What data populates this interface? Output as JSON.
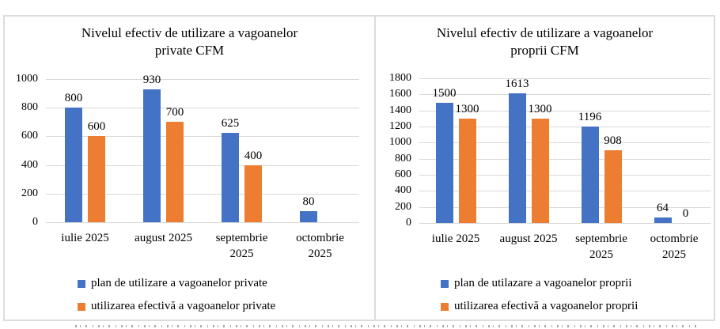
{
  "colors": {
    "plan_series": "#4472C4",
    "efectiv_series": "#ED7D31",
    "gridline": "#D9D9D9",
    "panel_border": "#DCDCDC",
    "text": "#000000"
  },
  "chart_data": [
    {
      "type": "bar",
      "title": "Nivelul efectiv de utilizare a vagoanelor private CFM",
      "title_lines": [
        "Nivelul efectiv de utilizare a vagoanelor",
        "private CFM"
      ],
      "categories": [
        "iulie 2025",
        "august 2025",
        "septembrie 2025",
        "octombrie 2025"
      ],
      "categories_display": [
        [
          "iulie 2025"
        ],
        [
          "august 2025"
        ],
        [
          "septembrie",
          "2025"
        ],
        [
          "octombrie",
          "2025"
        ]
      ],
      "series": [
        {
          "name": "plan de utilizare a vagoanelor private",
          "color": "#4472C4",
          "values": [
            800,
            930,
            625,
            80
          ],
          "data_labels": [
            "800",
            "930",
            "625",
            "80"
          ]
        },
        {
          "name": "utilizarea efectivă a vagoanelor private",
          "color": "#ED7D31",
          "values": [
            600,
            700,
            400,
            null
          ],
          "data_labels": [
            "600",
            "700",
            "400",
            ""
          ]
        }
      ],
      "ylim": [
        0,
        1000
      ],
      "y_ticks": [
        1000,
        800,
        600,
        400,
        200,
        0
      ],
      "grid": true,
      "legend_position": "bottom",
      "data_labels": true
    },
    {
      "type": "bar",
      "title": "Nivelul efectiv de utilizare a vagoanelor proprii CFM",
      "title_lines": [
        "Nivelul efectiv de utilizare a vagoanelor",
        "proprii CFM"
      ],
      "categories": [
        "iulie 2025",
        "august 2025",
        "septembrie 2025",
        "octombrie 2025"
      ],
      "categories_display": [
        [
          "iulie 2025"
        ],
        [
          "august 2025"
        ],
        [
          "septembrie",
          "2025"
        ],
        [
          "octombrie",
          "2025"
        ]
      ],
      "series": [
        {
          "name": "plan de utilazare a vagoanelor proprii",
          "color": "#4472C4",
          "values": [
            1500,
            1613,
            1196,
            64
          ],
          "data_labels": [
            "1500",
            "1613",
            "1196",
            "64"
          ]
        },
        {
          "name": "utilizarea efectivă a vagoanelor proprii",
          "color": "#ED7D31",
          "values": [
            1300,
            1300,
            908,
            0
          ],
          "data_labels": [
            "1300",
            "1300",
            "908",
            "0"
          ]
        }
      ],
      "ylim": [
        0,
        1800
      ],
      "y_ticks": [
        1800,
        1600,
        1400,
        1200,
        1000,
        800,
        600,
        400,
        200,
        0
      ],
      "grid": true,
      "legend_position": "bottom",
      "data_labels": true
    }
  ]
}
